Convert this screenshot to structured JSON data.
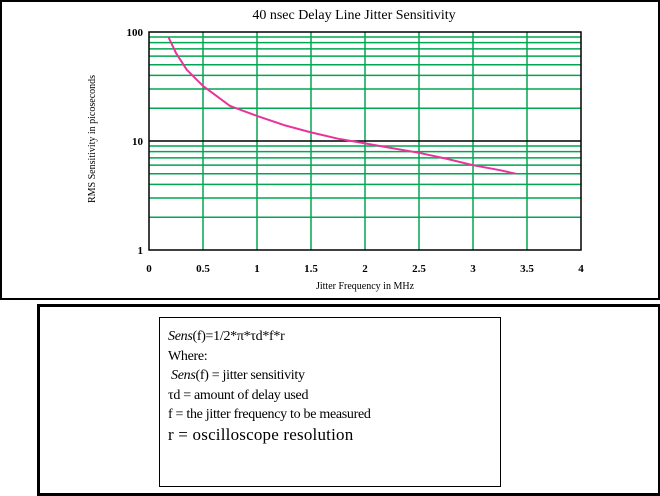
{
  "colors": {
    "grid_major": "#000000",
    "grid_minor": "#00a650",
    "curve": "#e8339a",
    "text": "#000000"
  },
  "chart_data": {
    "type": "line",
    "title": "40 nsec Delay Line Jitter Sensitivity",
    "xlabel": "Jitter Frequency in MHz",
    "ylabel": "RMS Sensitivity in picoseconds",
    "xlim": [
      0,
      4
    ],
    "ylim": [
      1,
      100
    ],
    "yscale": "log",
    "grid": true,
    "x_ticks": [
      "0",
      "0.5",
      "1",
      "1.5",
      "2",
      "2.5",
      "3",
      "3.5",
      "4"
    ],
    "y_ticks": [
      "1",
      "10",
      "100"
    ],
    "series": [
      {
        "x": [
          0.18,
          0.25,
          0.35,
          0.5,
          0.75,
          1.0,
          1.25,
          1.5,
          1.75,
          2.0,
          2.25,
          2.5,
          2.75,
          3.0,
          3.25,
          3.4
        ],
        "y": [
          90,
          64,
          45,
          32,
          21,
          17,
          14,
          12,
          10.5,
          9.5,
          8.6,
          7.8,
          6.9,
          6.0,
          5.4,
          5.0
        ]
      }
    ]
  },
  "formula": {
    "line1_italic": "Sens",
    "line1_rest": "(f)=1/2*π*τd*f*r",
    "line2": "Where:",
    "line3_italic": "Sens",
    "line3_rest": "(f) = jitter sensitivity",
    "line4": "τd = amount of delay used",
    "line5": "f = the jitter frequency to be measured",
    "line6": "r = oscilloscope resolution"
  }
}
